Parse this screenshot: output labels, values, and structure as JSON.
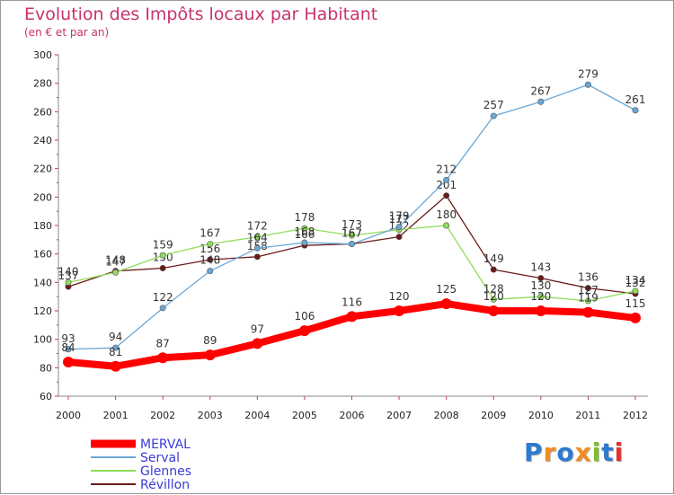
{
  "title": "Evolution des Impôts locaux par Habitant",
  "subtitle": "(en € et par an)",
  "logo": {
    "text": "Proxiti",
    "colors": [
      "#2e7bcf",
      "#f28c1e",
      "#2e7bcf",
      "#f28c1e",
      "#7cbf2a",
      "#2e7bcf",
      "#e2332c"
    ]
  },
  "chart_data": {
    "type": "line",
    "title": "Evolution des Impôts locaux par Habitant",
    "subtitle": "(en € et par an)",
    "xlabel": "",
    "ylabel": "",
    "x": [
      "2000",
      "2001",
      "2002",
      "2003",
      "2004",
      "2005",
      "2006",
      "2007",
      "2008",
      "2009",
      "2010",
      "2011",
      "2012"
    ],
    "ylim": [
      60,
      300
    ],
    "yticks": [
      60,
      80,
      100,
      120,
      140,
      160,
      180,
      200,
      220,
      240,
      260,
      280,
      300
    ],
    "grid": false,
    "legend": "bottom-left",
    "series": [
      {
        "name": "Révillon",
        "color": "#6b1a1a",
        "values": [
          137,
          148,
          150,
          156,
          158,
          166,
          167,
          172,
          201,
          149,
          143,
          136,
          132
        ]
      },
      {
        "name": "Glennes",
        "color": "#8fdc5a",
        "values": [
          140,
          147,
          159,
          167,
          172,
          178,
          173,
          177,
          180,
          128,
          130,
          127,
          134
        ]
      },
      {
        "name": "Serval",
        "color": "#6aa7d6",
        "values": [
          93,
          94,
          122,
          148,
          164,
          168,
          167,
          179,
          212,
          257,
          267,
          279,
          261
        ]
      },
      {
        "name": "MERVAL",
        "color": "#ff0000",
        "values": [
          84,
          81,
          87,
          89,
          97,
          106,
          116,
          120,
          125,
          120,
          120,
          119,
          115
        ]
      }
    ],
    "legend_order": [
      "MERVAL",
      "Serval",
      "Glennes",
      "Révillon"
    ]
  }
}
